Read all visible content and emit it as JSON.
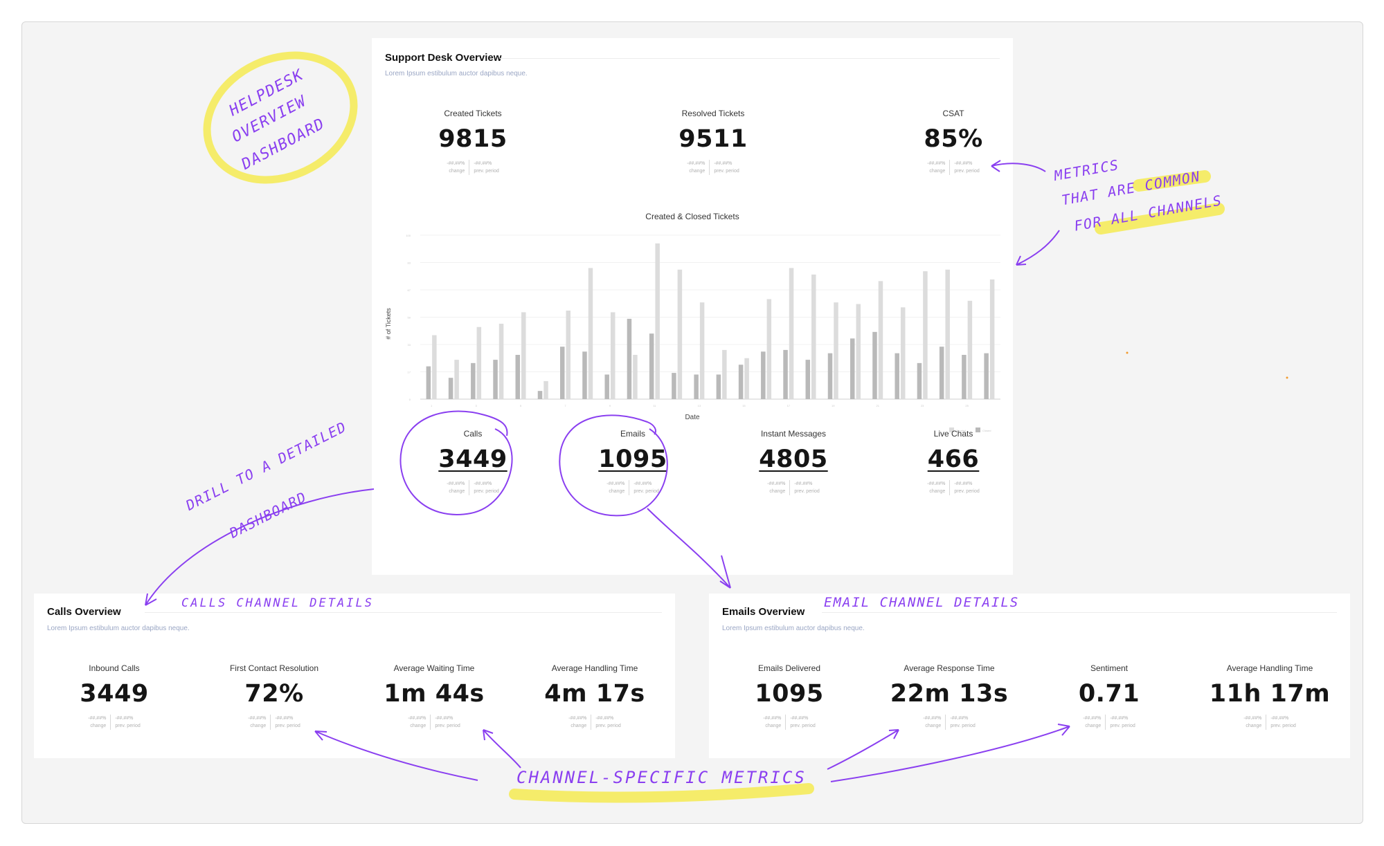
{
  "overview": {
    "title": "Support Desk Overview",
    "subtitle": "Lorem Ipsum estibulum auctor dapibus neque.",
    "kpis": [
      {
        "label": "Created Tickets",
        "value": "9815",
        "change": "-##.##%",
        "prev": "-##.##%",
        "change_label": "change",
        "prev_label": "prev. period"
      },
      {
        "label": "Resolved Tickets",
        "value": "9511",
        "change": "-##.##%",
        "prev": "-##.##%",
        "change_label": "change",
        "prev_label": "prev. period"
      },
      {
        "label": "CSAT",
        "value": "85%",
        "change": "-##.##%",
        "prev": "-##.##%",
        "change_label": "change",
        "prev_label": "prev. period"
      }
    ],
    "channels": [
      {
        "label": "Calls",
        "value": "3449",
        "change": "-##.##%",
        "prev": "-##.##%",
        "change_label": "change",
        "prev_label": "prev. period"
      },
      {
        "label": "Emails",
        "value": "1095",
        "change": "-##.##%",
        "prev": "-##.##%",
        "change_label": "change",
        "prev_label": "prev. period"
      },
      {
        "label": "Instant Messages",
        "value": "4805",
        "change": "-##.##%",
        "prev": "-##.##%",
        "change_label": "change",
        "prev_label": "prev. period"
      },
      {
        "label": "Live Chats",
        "value": "466",
        "change": "-##.##%",
        "prev": "-##.##%",
        "change_label": "change",
        "prev_label": "prev. period"
      }
    ]
  },
  "chart_data": {
    "type": "bar",
    "title": "Created & Closed Tickets",
    "xlabel": "Date",
    "ylabel": "# of Tickets",
    "ylim": [
      0,
      100
    ],
    "legend_position": "bottom-right",
    "series": [
      {
        "name": "Created",
        "color": "#dcdcdc",
        "values": [
          39,
          24,
          44,
          46,
          53,
          11,
          54,
          80,
          53,
          27,
          95,
          79,
          59,
          30,
          25,
          61,
          80,
          76,
          59,
          58,
          72,
          56,
          78,
          79,
          60,
          73
        ]
      },
      {
        "name": "Closed",
        "color": "#b9b9b9",
        "values": [
          20,
          13,
          22,
          24,
          27,
          5,
          32,
          29,
          15,
          49,
          40,
          16,
          15,
          15,
          21,
          29,
          30,
          24,
          28,
          37,
          41,
          28,
          22,
          32,
          27,
          28
        ]
      }
    ],
    "categories": [
      "1",
      "2",
      "3",
      "4",
      "5",
      "6",
      "7",
      "8",
      "9",
      "10",
      "11",
      "12",
      "13",
      "14",
      "15",
      "16",
      "17",
      "18",
      "19",
      "20",
      "21",
      "22",
      "23",
      "24",
      "25",
      "26"
    ]
  },
  "calls": {
    "title": "Calls Overview",
    "subtitle": "Lorem Ipsum estibulum auctor dapibus neque.",
    "kpis": [
      {
        "label": "Inbound Calls",
        "value": "3449",
        "change": "-##.##%",
        "prev": "-##.##%",
        "change_label": "change",
        "prev_label": "prev. period"
      },
      {
        "label": "First Contact Resolution",
        "value": "72%",
        "change": "-##.##%",
        "prev": "-##.##%",
        "change_label": "change",
        "prev_label": "prev. period"
      },
      {
        "label": "Average Waiting Time",
        "value": "1m 44s",
        "change": "-##.##%",
        "prev": "-##.##%",
        "change_label": "change",
        "prev_label": "prev. period"
      },
      {
        "label": "Average Handling Time",
        "value": "4m 17s",
        "change": "-##.##%",
        "prev": "-##.##%",
        "change_label": "change",
        "prev_label": "prev. period"
      }
    ]
  },
  "emails": {
    "title": "Emails Overview",
    "subtitle": "Lorem Ipsum estibulum auctor dapibus neque.",
    "kpis": [
      {
        "label": "Emails Delivered",
        "value": "1095",
        "change": "-##.##%",
        "prev": "-##.##%",
        "change_label": "change",
        "prev_label": "prev. period"
      },
      {
        "label": "Average Response Time",
        "value": "22m 13s",
        "change": "-##.##%",
        "prev": "-##.##%",
        "change_label": "change",
        "prev_label": "prev. period"
      },
      {
        "label": "Sentiment",
        "value": "0.71",
        "change": "-##.##%",
        "prev": "-##.##%",
        "change_label": "change",
        "prev_label": "prev. period"
      },
      {
        "label": "Average Handling Time",
        "value": "11h 17m",
        "change": "-##.##%",
        "prev": "-##.##%",
        "change_label": "change",
        "prev_label": "prev. period"
      }
    ]
  },
  "annotations": {
    "helpdesk_1": "Helpdesk",
    "helpdesk_2": "Overview",
    "helpdesk_3": "Dashboard",
    "common_1": "Metrics",
    "common_2": "that are common",
    "common_3": "for all channels",
    "drill_1": "Drill to a detailed",
    "drill_2": "Dashboard",
    "calls_details": "Calls channel details",
    "email_details": "Email channel details",
    "channel_specific": "Channel-specific metrics",
    "ink_color": "#8a3ff0",
    "highlight_color": "#f5ec6a"
  }
}
